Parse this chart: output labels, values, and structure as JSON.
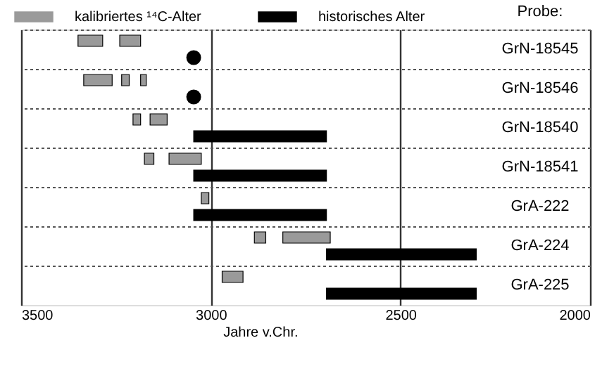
{
  "chart_data": {
    "type": "bar",
    "orientation": "horizontal",
    "xlabel": "Jahre v.Chr.",
    "ylabel": "Probe:",
    "categories": [
      "GrN-18545",
      "GrN-18546",
      "GrN-18540",
      "GrN-18541",
      "GrA-222",
      "GrA-224",
      "GrA-225"
    ],
    "xlim": [
      3500,
      2000
    ],
    "xticks": [
      3500,
      3000,
      2500,
      2000
    ],
    "grid": true,
    "legend": "top",
    "series": [
      {
        "name": "kalibriertes ¹⁴C-Alter",
        "color": "#9a9a9a",
        "base": [
          3350,
          3335,
          3205,
          3175,
          3025,
          2885,
          2970
        ],
        "values": [
          -65,
          -75,
          -20,
          -25,
          -20,
          -30,
          -55
        ]
      },
      {
        "color": "#9a9a9a",
        "base": [
          3240,
          3235,
          3160,
          3110,
          null,
          2810,
          null
        ],
        "values": [
          -55,
          -20,
          -45,
          -85,
          null,
          -125,
          null
        ]
      },
      {
        "color": "#9a9a9a",
        "base": [
          null,
          3185,
          null,
          null,
          null,
          null,
          null
        ],
        "values": [
          null,
          -15,
          null,
          null,
          null,
          null,
          null
        ]
      },
      {
        "name": "historisches Alter",
        "color": "#000000",
        "base": [
          null,
          null,
          3045,
          3045,
          3045,
          2695,
          2695
        ],
        "values": [
          null,
          null,
          -350,
          -350,
          -350,
          -395,
          -395
        ]
      },
      {
        "type": "scatter",
        "marker": "circle",
        "color": "#000000",
        "values": [
          3045,
          3045,
          null,
          null,
          null,
          null,
          null
        ]
      }
    ]
  }
}
